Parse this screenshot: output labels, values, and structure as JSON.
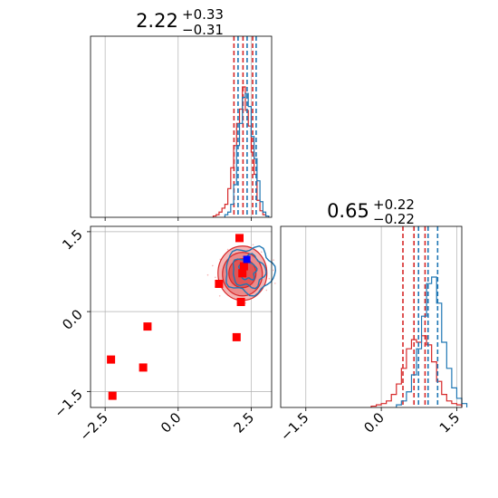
{
  "colors": {
    "red": "#d62728",
    "blue": "#1f77b4",
    "marker_red": "#ff0000",
    "marker_blue": "#0000ff",
    "grid": "#b0b0b0"
  },
  "titles": {
    "top": {
      "main": "2.22",
      "sup": "+0.33",
      "sub": "−0.31"
    },
    "right": {
      "main": "0.65",
      "sup": "+0.22",
      "sub": "−0.22"
    }
  },
  "chart_data": [
    {
      "panel": "top-left",
      "type": "histogram",
      "title": "2.22 +0.33 −0.31",
      "xlim": [
        -3.0,
        3.2
      ],
      "grid": true,
      "series": [
        {
          "color": "red",
          "quantile_lines": [
            1.91,
            2.22,
            2.55
          ],
          "bins_x": [
            1.2,
            1.3,
            1.4,
            1.5,
            1.6,
            1.7,
            1.8,
            1.9,
            2.0,
            2.1,
            2.2,
            2.3,
            2.4,
            2.5,
            2.6,
            2.7,
            2.8,
            2.9,
            3.0
          ],
          "heights": [
            0.01,
            0.02,
            0.04,
            0.07,
            0.1,
            0.22,
            0.38,
            0.55,
            0.72,
            0.83,
            1.0,
            0.82,
            0.7,
            0.5,
            0.33,
            0.13,
            0.05,
            0.02,
            0.01
          ]
        },
        {
          "color": "blue",
          "quantile_lines": [
            2.05,
            2.36,
            2.67
          ],
          "bins_x": [
            1.6,
            1.7,
            1.8,
            1.9,
            2.0,
            2.1,
            2.2,
            2.3,
            2.4,
            2.5,
            2.6,
            2.7,
            2.8,
            2.9,
            3.0
          ],
          "heights": [
            0.02,
            0.04,
            0.1,
            0.25,
            0.55,
            0.72,
            0.92,
            0.95,
            0.85,
            0.62,
            0.45,
            0.28,
            0.12,
            0.04,
            0.01
          ]
        }
      ]
    },
    {
      "panel": "bottom-left",
      "type": "scatter",
      "xlim": [
        -3.0,
        3.2
      ],
      "ylim": [
        -1.8,
        1.6
      ],
      "xticks": [
        "−2.5",
        "0.0",
        "2.5"
      ],
      "yticks": [
        "−1.5",
        "0.0",
        "1.5"
      ],
      "grid": true,
      "points_red": [
        [
          -2.3,
          -0.9
        ],
        [
          -2.25,
          -1.58
        ],
        [
          -1.05,
          -0.28
        ],
        [
          -1.2,
          -1.05
        ],
        [
          1.4,
          0.52
        ],
        [
          2.0,
          -0.48
        ],
        [
          2.1,
          1.38
        ],
        [
          2.15,
          0.18
        ],
        [
          2.2,
          0.72
        ],
        [
          2.25,
          0.85
        ]
      ],
      "points_blue": [
        [
          2.35,
          0.98
        ]
      ]
    },
    {
      "panel": "bottom-right",
      "type": "histogram",
      "title": "0.65 +0.22 −0.22",
      "xlim": [
        -2.0,
        1.6
      ],
      "xticks": [
        "−1.5",
        "0.0",
        "1.5"
      ],
      "grid": true,
      "series": [
        {
          "color": "red",
          "quantile_lines": [
            0.43,
            0.65,
            0.87
          ],
          "bins_x": [
            -0.2,
            -0.1,
            0.0,
            0.1,
            0.2,
            0.3,
            0.4,
            0.5,
            0.6,
            0.7,
            0.8,
            0.9,
            1.0,
            1.1,
            1.2,
            1.3,
            1.4,
            1.5
          ],
          "heights": [
            0.01,
            0.02,
            0.03,
            0.05,
            0.1,
            0.18,
            0.3,
            0.45,
            0.52,
            0.5,
            0.55,
            0.48,
            0.35,
            0.2,
            0.1,
            0.05,
            0.03,
            0.02
          ]
        },
        {
          "color": "blue",
          "quantile_lines": [
            0.74,
            0.93,
            1.12
          ],
          "bins_x": [
            0.3,
            0.4,
            0.5,
            0.6,
            0.7,
            0.8,
            0.9,
            1.0,
            1.1,
            1.2,
            1.3,
            1.4,
            1.5,
            1.6
          ],
          "heights": [
            0.02,
            0.05,
            0.12,
            0.25,
            0.45,
            0.7,
            0.95,
            1.0,
            0.8,
            0.5,
            0.3,
            0.15,
            0.07,
            0.03
          ]
        }
      ]
    }
  ]
}
